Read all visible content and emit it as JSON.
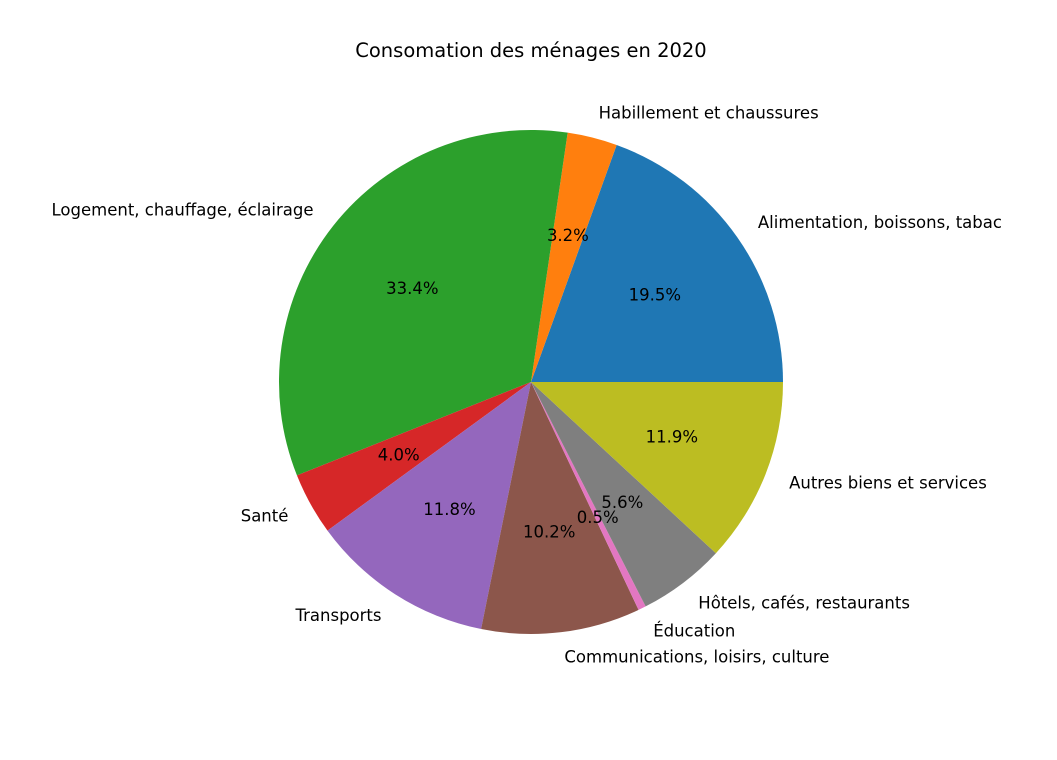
{
  "chart_data": {
    "type": "pie",
    "title": "Consomation des ménages en 2020",
    "start_angle": 0,
    "direction": "counterclockwise",
    "slices": [
      {
        "label": "Alimentation, boissons, tabac",
        "value": 19.5,
        "pct_label": "19.5%",
        "color": "#1f77b4"
      },
      {
        "label": "Habillement et chaussures",
        "value": 3.2,
        "pct_label": "3.2%",
        "color": "#ff7f0e"
      },
      {
        "label": "Logement, chauffage, éclairage",
        "value": 33.4,
        "pct_label": "33.4%",
        "color": "#2ca02c"
      },
      {
        "label": "Santé",
        "value": 4.0,
        "pct_label": "4.0%",
        "color": "#d62728"
      },
      {
        "label": "Transports",
        "value": 11.8,
        "pct_label": "11.8%",
        "color": "#9467bd"
      },
      {
        "label": "Communications, loisirs, culture",
        "value": 10.2,
        "pct_label": "10.2%",
        "color": "#8c564b"
      },
      {
        "label": "Éducation",
        "value": 0.5,
        "pct_label": "0.5%",
        "color": "#e377c2"
      },
      {
        "label": "Hôtels, cafés, restaurants",
        "value": 5.6,
        "pct_label": "5.6%",
        "color": "#7f7f7f"
      },
      {
        "label": "Autres biens et services",
        "value": 11.9,
        "pct_label": "11.9%",
        "color": "#bcbd22"
      }
    ]
  }
}
